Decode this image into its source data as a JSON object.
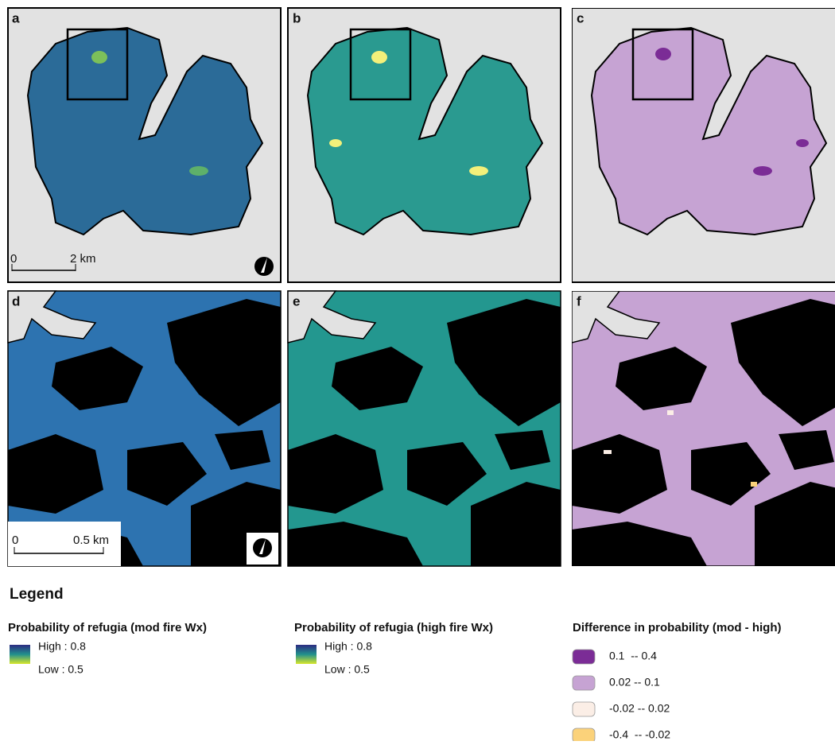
{
  "panels": [
    {
      "letter": "a"
    },
    {
      "letter": "b"
    },
    {
      "letter": "c"
    },
    {
      "letter": "d"
    },
    {
      "letter": "e"
    },
    {
      "letter": "f"
    }
  ],
  "scale_bars": [
    {
      "zero": "0",
      "length": "2 km"
    },
    {
      "zero": "0",
      "length": "0.5 km"
    }
  ],
  "legend": {
    "title": "Legend",
    "ramps": [
      {
        "title": "Probability of refugia (mod fire Wx)",
        "high": "High : 0.8",
        "low": "Low : 0.5"
      },
      {
        "title": "Probability of refugia (high fire Wx)",
        "high": "High : 0.8",
        "low": "Low : 0.5"
      }
    ],
    "classes": {
      "title": "Difference in probability (mod - high)",
      "items": [
        {
          "label": "0.1  -- 0.4",
          "color": "#7b2c96"
        },
        {
          "label": "0.02 -- 0.1",
          "color": "#c6a3d3"
        },
        {
          "label": "-0.02 -- 0.02",
          "color": "#fbeee6"
        },
        {
          "label": "-0.4  -- -0.02",
          "color": "#fbd27a"
        }
      ]
    }
  }
}
